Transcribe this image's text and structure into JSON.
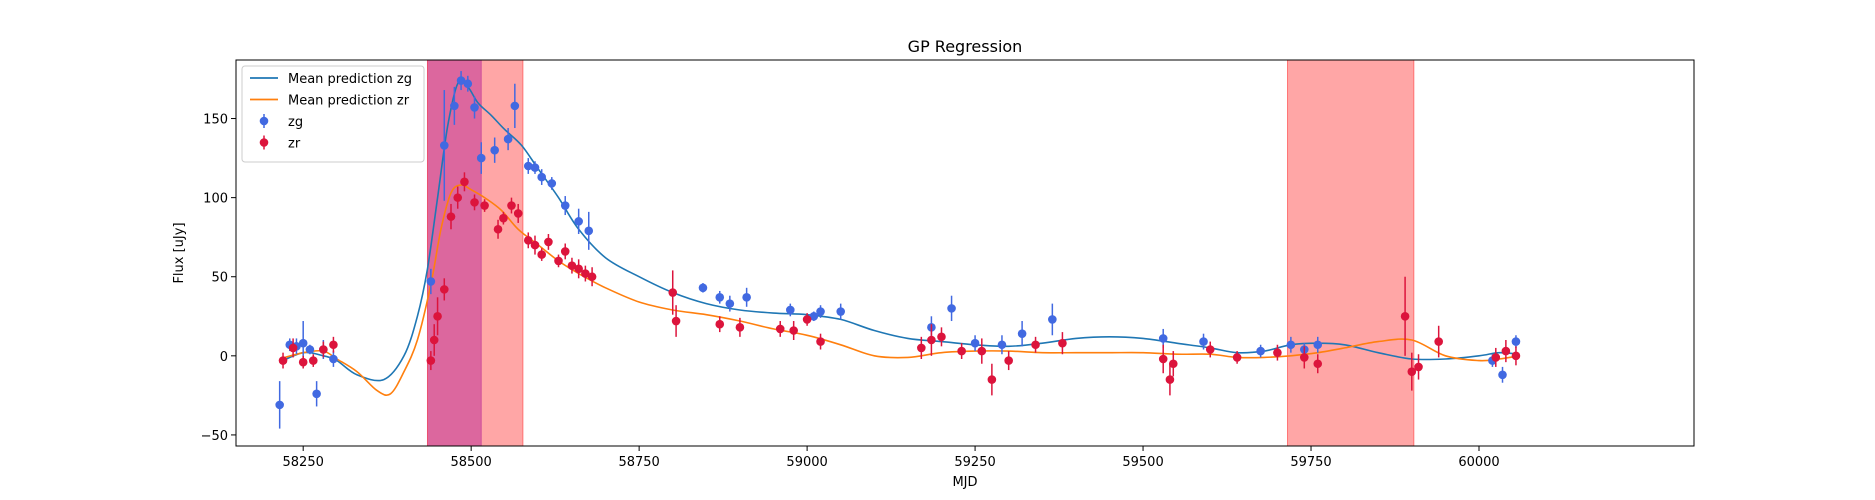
{
  "chart_data": {
    "type": "scatter",
    "title": "GP Regression",
    "xlabel": "MJD",
    "ylabel": "Flux [uJy]",
    "xlim": [
      58150,
      60320
    ],
    "ylim": [
      -57,
      187
    ],
    "xticks": [
      58250,
      58500,
      58750,
      59000,
      59250,
      59500,
      59750,
      60000
    ],
    "yticks": [
      -50,
      0,
      50,
      100,
      150
    ],
    "xtick_labels": [
      "58250",
      "58500",
      "58750",
      "59000",
      "59250",
      "59500",
      "59750",
      "60000"
    ],
    "ytick_labels": [
      "−50",
      "0",
      "50",
      "100",
      "150"
    ],
    "legend": {
      "position": "top-left",
      "entries": [
        {
          "label": "Mean prediction zg",
          "kind": "line",
          "color": "#1f77b4"
        },
        {
          "label": "Mean prediction zr",
          "kind": "line",
          "color": "#ff7f0e"
        },
        {
          "label": "zg",
          "kind": "errorbar",
          "color": "#4169e1"
        },
        {
          "label": "zr",
          "kind": "errorbar",
          "color": "#dc143c"
        }
      ]
    },
    "shaded_regions": [
      {
        "x0": 58435,
        "x1": 58515,
        "color": "#8a2be2",
        "opacity": 0.6
      },
      {
        "x0": 58435,
        "x1": 58577,
        "color": "#ff4d4d",
        "opacity": 0.5
      },
      {
        "x0": 59715,
        "x1": 59903,
        "color": "#ff4d4d",
        "opacity": 0.5
      }
    ],
    "series": [
      {
        "name": "Mean prediction zg",
        "type": "line",
        "color": "#1f77b4",
        "x": [
          58215,
          58250,
          58280,
          58300,
          58330,
          58370,
          58400,
          58420,
          58435,
          58450,
          58465,
          58480,
          58495,
          58510,
          58530,
          58550,
          58575,
          58600,
          58630,
          58660,
          58700,
          58750,
          58800,
          58850,
          58900,
          58950,
          59000,
          59050,
          59100,
          59150,
          59200,
          59250,
          59300,
          59350,
          59400,
          59450,
          59500,
          59550,
          59600,
          59640,
          59680,
          59720,
          59760,
          59800,
          59850,
          59900,
          59950,
          60000,
          60030,
          60060
        ],
        "y": [
          -4,
          2,
          0,
          -3,
          -12,
          -15,
          0,
          25,
          55,
          100,
          145,
          172,
          170,
          160,
          152,
          143,
          133,
          118,
          100,
          80,
          62,
          50,
          40,
          33,
          29,
          27,
          26,
          23,
          16,
          11,
          9,
          7,
          6,
          8,
          11,
          12,
          11,
          8,
          5,
          2,
          3,
          7,
          8,
          7,
          2,
          -2,
          -2,
          0,
          2,
          1
        ]
      },
      {
        "name": "Mean prediction zr",
        "type": "line",
        "color": "#ff7f0e",
        "x": [
          58215,
          58250,
          58280,
          58300,
          58330,
          58360,
          58380,
          58400,
          58420,
          58440,
          58455,
          58470,
          58485,
          58500,
          58520,
          58545,
          58570,
          58600,
          58630,
          58660,
          58700,
          58750,
          58800,
          58850,
          58900,
          58950,
          59000,
          59050,
          59100,
          59150,
          59200,
          59250,
          59300,
          59350,
          59400,
          59450,
          59500,
          59550,
          59600,
          59640,
          59680,
          59720,
          59760,
          59800,
          59850,
          59900,
          59950,
          60000,
          60030,
          60060
        ],
        "y": [
          -2,
          2,
          3,
          -2,
          -10,
          -22,
          -24,
          -10,
          10,
          45,
          80,
          103,
          108,
          105,
          100,
          92,
          80,
          70,
          60,
          52,
          43,
          34,
          29,
          26,
          22,
          17,
          13,
          7,
          0,
          -1,
          2,
          3,
          3,
          2,
          2,
          2,
          2,
          1,
          1,
          -1,
          -1,
          0,
          2,
          5,
          9,
          10,
          0,
          -3,
          -2,
          0
        ]
      },
      {
        "name": "zg",
        "type": "errorbar",
        "color": "#4169e1",
        "x": [
          58215,
          58230,
          58240,
          58250,
          58260,
          58270,
          58280,
          58295,
          58440,
          58460,
          58475,
          58485,
          58495,
          58505,
          58515,
          58535,
          58555,
          58565,
          58585,
          58595,
          58605,
          58620,
          58640,
          58660,
          58675,
          58845,
          58870,
          58885,
          58910,
          58975,
          59010,
          59020,
          59050,
          59185,
          59215,
          59250,
          59290,
          59320,
          59365,
          59530,
          59590,
          59675,
          59720,
          59740,
          59760,
          60020,
          60035,
          60055
        ],
        "y": [
          -31,
          7,
          6,
          8,
          4,
          -24,
          4,
          -2,
          47,
          133,
          158,
          174,
          172,
          157,
          125,
          130,
          137,
          158,
          120,
          119,
          113,
          109,
          95,
          85,
          79,
          43,
          37,
          33,
          37,
          29,
          25,
          28,
          28,
          18,
          30,
          8,
          7,
          14,
          23,
          11,
          9,
          3,
          7,
          4,
          7,
          -3,
          -12,
          9
        ],
        "err": [
          15,
          4,
          5,
          14,
          3,
          8,
          6,
          5,
          8,
          35,
          12,
          6,
          5,
          7,
          10,
          8,
          7,
          14,
          5,
          4,
          5,
          4,
          6,
          8,
          12,
          3,
          4,
          5,
          6,
          4,
          3,
          4,
          5,
          7,
          8,
          5,
          6,
          8,
          10,
          6,
          5,
          4,
          5,
          4,
          5,
          4,
          5,
          4
        ]
      },
      {
        "name": "zr",
        "type": "errorbar",
        "color": "#dc143c",
        "x": [
          58220,
          58235,
          58250,
          58265,
          58280,
          58295,
          58440,
          58445,
          58450,
          58460,
          58470,
          58480,
          58490,
          58505,
          58520,
          58540,
          58548,
          58560,
          58570,
          58585,
          58595,
          58605,
          58615,
          58630,
          58640,
          58650,
          58660,
          58670,
          58680,
          58800,
          58805,
          58870,
          58900,
          58960,
          58980,
          59000,
          59020,
          59170,
          59185,
          59200,
          59230,
          59260,
          59275,
          59300,
          59340,
          59380,
          59530,
          59540,
          59545,
          59600,
          59640,
          59700,
          59740,
          59760,
          59890,
          59900,
          59910,
          59940,
          60025,
          60040,
          60055
        ],
        "y": [
          -3,
          5,
          -4,
          -3,
          4,
          7,
          -3,
          10,
          25,
          42,
          88,
          100,
          110,
          97,
          95,
          80,
          87,
          95,
          90,
          73,
          70,
          64,
          72,
          60,
          66,
          57,
          55,
          52,
          50,
          40,
          22,
          20,
          18,
          17,
          16,
          23,
          9,
          5,
          10,
          12,
          3,
          3,
          -15,
          -3,
          7,
          8,
          -2,
          -15,
          -5,
          4,
          -1,
          2,
          -1,
          -5,
          25,
          -10,
          -7,
          9,
          -1,
          3,
          0
        ],
        "err": [
          5,
          6,
          4,
          4,
          5,
          5,
          6,
          10,
          12,
          7,
          8,
          7,
          6,
          5,
          4,
          6,
          4,
          5,
          6,
          5,
          6,
          4,
          5,
          4,
          5,
          5,
          6,
          5,
          6,
          14,
          10,
          5,
          6,
          5,
          6,
          4,
          5,
          7,
          10,
          6,
          5,
          8,
          10,
          6,
          5,
          7,
          9,
          10,
          8,
          5,
          4,
          5,
          7,
          6,
          25,
          12,
          8,
          10,
          6,
          7,
          6
        ]
      }
    ]
  }
}
